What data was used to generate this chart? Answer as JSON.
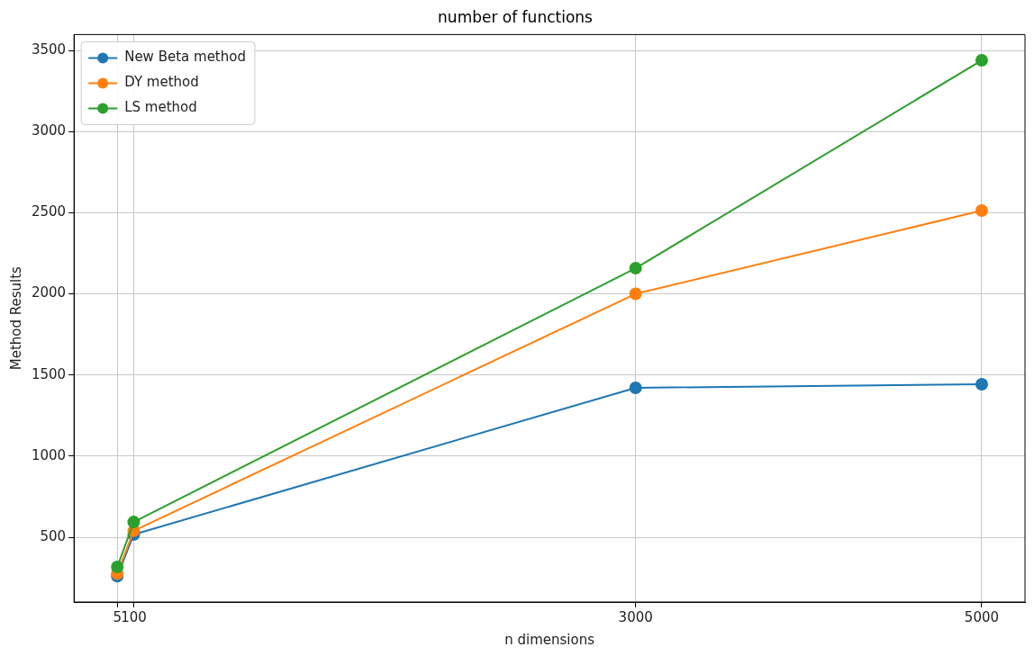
{
  "chart_data": {
    "type": "line",
    "title": "number of functions",
    "xlabel": "n dimensions",
    "ylabel": "Method Results",
    "x": [
      5,
      100,
      3000,
      5000
    ],
    "series": [
      {
        "name": "New Beta method",
        "color": "#1f77b4",
        "values": [
          260,
          517,
          1421,
          1443
        ]
      },
      {
        "name": "DY method",
        "color": "#ff7f0e",
        "values": [
          275,
          540,
          2000,
          2513
        ]
      },
      {
        "name": "LS method",
        "color": "#2ca02c",
        "values": [
          317,
          594,
          2158,
          3439
        ]
      }
    ],
    "xlim": [
      -245,
      5250
    ],
    "xticks": [
      5,
      100,
      3000,
      5000
    ],
    "ylim": [
      101,
      3598
    ],
    "yticks": [
      500,
      1000,
      1500,
      2000,
      2500,
      3000,
      3500
    ],
    "grid": true,
    "legend": "top left",
    "marker": "circle",
    "line_style": "solid"
  }
}
